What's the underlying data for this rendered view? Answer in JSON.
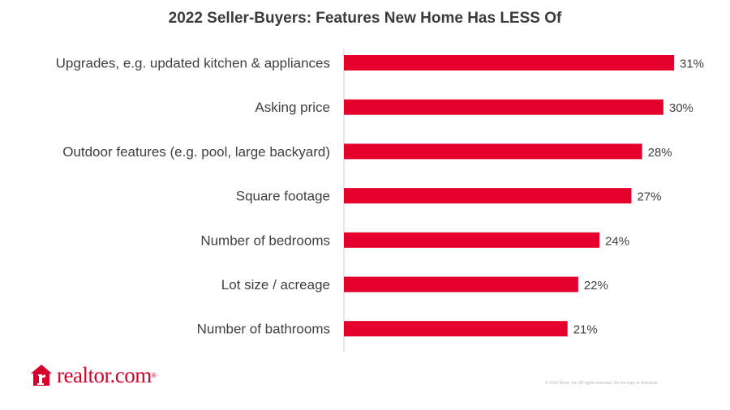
{
  "chart_data": {
    "type": "bar",
    "orientation": "horizontal",
    "title": "2022 Seller-Buyers: Features New Home Has LESS Of",
    "categories": [
      "Upgrades, e.g. updated kitchen & appliances",
      "Asking price",
      "Outdoor features (e.g. pool, large backyard)",
      "Square footage",
      "Number of bedrooms",
      "Lot size / acreage",
      "Number of bathrooms"
    ],
    "values": [
      31,
      30,
      28,
      27,
      24,
      22,
      21
    ],
    "value_labels": [
      "31%",
      "30%",
      "28%",
      "27%",
      "24%",
      "22%",
      "21%"
    ],
    "xlim": [
      0,
      31
    ],
    "grid": false,
    "legend": "none",
    "bar_color": "#e4002b"
  },
  "brand": {
    "logo_text": "realtor.com",
    "logo_mark": "®",
    "color": "#d6002a",
    "icon": "house-r-icon"
  },
  "footer": {
    "copyright": "© 2022 Move, Inc. All rights reserved. Do not copy or distribute."
  }
}
